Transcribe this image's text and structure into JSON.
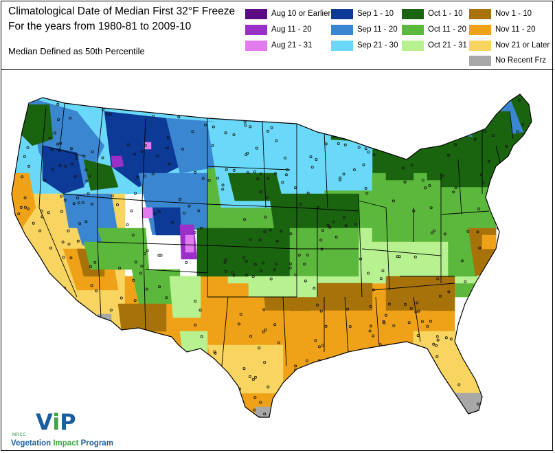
{
  "title_line1": "Climatological Date of Median First 32°F Freeze",
  "title_line2": "For the years from 1980-81 to 2009-10",
  "subtitle": "Median Defined as 50th Percentile",
  "legend": [
    {
      "label": "Aug 10 or Earlier",
      "color": "#5a0a82"
    },
    {
      "label": "Aug 11 - 20",
      "color": "#9b30c8"
    },
    {
      "label": "Aug 21 - 31",
      "color": "#e27af0"
    },
    {
      "label": "Sep 1 - 10",
      "color": "#0d3a96"
    },
    {
      "label": "Sep 11 - 20",
      "color": "#3a86d0"
    },
    {
      "label": "Sep 21 - 30",
      "color": "#6ad8f8"
    },
    {
      "label": "Oct 1 - 10",
      "color": "#1a6410"
    },
    {
      "label": "Oct 11 - 20",
      "color": "#5cb83c"
    },
    {
      "label": "Oct 21 - 31",
      "color": "#b8f290"
    },
    {
      "label": "Nov 1 - 10",
      "color": "#a8720a"
    },
    {
      "label": "Nov 11 - 20",
      "color": "#efa218"
    },
    {
      "label": "Nov 21 or Later",
      "color": "#f8d460"
    },
    {
      "label": "No Recent Frz",
      "color": "#a8a8a8"
    }
  ],
  "logo": {
    "org": "MRCC",
    "mark_v": "V",
    "mark_i": "i",
    "mark_p": "P",
    "name_part1": "Vegetation ",
    "name_part2": "Impact",
    "name_part3": " Program"
  }
}
